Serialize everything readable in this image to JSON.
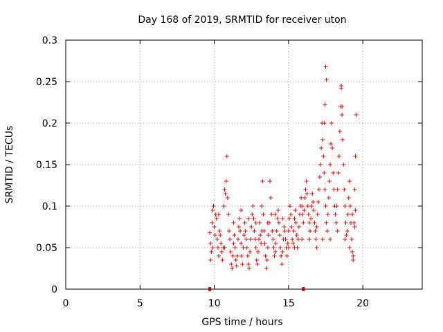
{
  "chart_data": {
    "type": "scatter",
    "title": "Day 168 of 2019, SRMTID for receiver uton",
    "xlabel": "GPS time / hours",
    "ylabel": "SRMTID / TECUs",
    "xlim": [
      0,
      24
    ],
    "ylim": [
      0,
      0.3
    ],
    "xticks": [
      0,
      5,
      10,
      15,
      20
    ],
    "yticks": [
      0,
      0.05,
      0.1,
      0.15,
      0.2,
      0.25,
      0.3
    ],
    "xtick_labels": [
      "0",
      "5",
      "10",
      "15",
      "20"
    ],
    "ytick_labels": [
      "0",
      "0.05",
      "0.1",
      "0.15",
      "0.2",
      "0.25",
      "0.3"
    ],
    "grid": true,
    "marker": "+",
    "color": "#ff0000",
    "axis_markers": {
      "x": [
        9.7,
        16.0
      ],
      "y": 0
    },
    "series": [
      {
        "name": "SRMTID",
        "points": [
          [
            9.7,
            0.068
          ],
          [
            9.75,
            0.055
          ],
          [
            9.8,
            0.045
          ],
          [
            9.85,
            0.08
          ],
          [
            9.9,
            0.095
          ],
          [
            9.95,
            0.1
          ],
          [
            10.0,
            0.075
          ],
          [
            10.05,
            0.065
          ],
          [
            10.1,
            0.09
          ],
          [
            10.15,
            0.085
          ],
          [
            10.2,
            0.06
          ],
          [
            10.25,
            0.05
          ],
          [
            10.3,
            0.04
          ],
          [
            10.35,
            0.07
          ],
          [
            10.4,
            0.065
          ],
          [
            10.45,
            0.055
          ],
          [
            10.5,
            0.045
          ],
          [
            10.55,
            0.035
          ],
          [
            10.6,
            0.05
          ],
          [
            10.65,
            0.1
          ],
          [
            10.7,
            0.12
          ],
          [
            10.75,
            0.115
          ],
          [
            10.8,
            0.13
          ],
          [
            10.85,
            0.16
          ],
          [
            10.9,
            0.11
          ],
          [
            10.95,
            0.09
          ],
          [
            11.0,
            0.07
          ],
          [
            11.05,
            0.06
          ],
          [
            11.1,
            0.045
          ],
          [
            11.15,
            0.03
          ],
          [
            11.2,
            0.025
          ],
          [
            11.25,
            0.04
          ],
          [
            11.3,
            0.055
          ],
          [
            11.35,
            0.065
          ],
          [
            11.4,
            0.05
          ],
          [
            11.45,
            0.035
          ],
          [
            11.5,
            0.028
          ],
          [
            11.55,
            0.04
          ],
          [
            11.6,
            0.06
          ],
          [
            11.65,
            0.075
          ],
          [
            11.7,
            0.085
          ],
          [
            11.75,
            0.07
          ],
          [
            11.8,
            0.055
          ],
          [
            11.85,
            0.04
          ],
          [
            11.9,
            0.03
          ],
          [
            11.95,
            0.05
          ],
          [
            12.0,
            0.065
          ],
          [
            12.05,
            0.08
          ],
          [
            12.1,
            0.07
          ],
          [
            12.15,
            0.06
          ],
          [
            12.2,
            0.05
          ],
          [
            12.25,
            0.04
          ],
          [
            12.3,
            0.03
          ],
          [
            12.35,
            0.025
          ],
          [
            12.4,
            0.045
          ],
          [
            12.45,
            0.06
          ],
          [
            12.5,
            0.075
          ],
          [
            12.55,
            0.09
          ],
          [
            12.6,
            0.1
          ],
          [
            12.65,
            0.085
          ],
          [
            12.7,
            0.07
          ],
          [
            12.75,
            0.06
          ],
          [
            12.8,
            0.05
          ],
          [
            12.85,
            0.035
          ],
          [
            12.9,
            0.03
          ],
          [
            12.95,
            0.045
          ],
          [
            13.0,
            0.06
          ],
          [
            13.05,
            0.08
          ],
          [
            13.1,
            0.065
          ],
          [
            13.15,
            0.055
          ],
          [
            13.2,
            0.1
          ],
          [
            13.25,
            0.13
          ],
          [
            13.3,
            0.09
          ],
          [
            13.35,
            0.07
          ],
          [
            13.4,
            0.055
          ],
          [
            13.45,
            0.04
          ],
          [
            13.5,
            0.025
          ],
          [
            13.55,
            0.035
          ],
          [
            13.6,
            0.05
          ],
          [
            13.65,
            0.065
          ],
          [
            13.7,
            0.08
          ],
          [
            13.75,
            0.13
          ],
          [
            13.8,
            0.11
          ],
          [
            13.85,
            0.09
          ],
          [
            13.9,
            0.07
          ],
          [
            13.95,
            0.06
          ],
          [
            14.0,
            0.05
          ],
          [
            14.05,
            0.04
          ],
          [
            14.1,
            0.045
          ],
          [
            14.15,
            0.055
          ],
          [
            14.2,
            0.07
          ],
          [
            14.25,
            0.085
          ],
          [
            14.3,
            0.095
          ],
          [
            14.35,
            0.08
          ],
          [
            14.4,
            0.065
          ],
          [
            14.45,
            0.05
          ],
          [
            14.5,
            0.04
          ],
          [
            14.55,
            0.03
          ],
          [
            14.6,
            0.045
          ],
          [
            14.65,
            0.06
          ],
          [
            14.7,
            0.075
          ],
          [
            14.75,
            0.07
          ],
          [
            14.8,
            0.06
          ],
          [
            14.85,
            0.05
          ],
          [
            14.9,
            0.04
          ],
          [
            14.95,
            0.055
          ],
          [
            15.0,
            0.07
          ],
          [
            15.05,
            0.085
          ],
          [
            15.1,
            0.1
          ],
          [
            15.15,
            0.09
          ],
          [
            15.2,
            0.075
          ],
          [
            15.25,
            0.06
          ],
          [
            15.3,
            0.055
          ],
          [
            15.35,
            0.07
          ],
          [
            15.4,
            0.085
          ],
          [
            15.45,
            0.095
          ],
          [
            15.5,
            0.08
          ],
          [
            15.55,
            0.065
          ],
          [
            15.6,
            0.05
          ],
          [
            15.65,
            0.06
          ],
          [
            15.7,
            0.075
          ],
          [
            15.75,
            0.09
          ],
          [
            15.8,
            0.1
          ],
          [
            15.85,
            0.11
          ],
          [
            15.9,
            0.1
          ],
          [
            15.95,
            0.09
          ],
          [
            16.0,
            0.08
          ],
          [
            16.05,
            0.095
          ],
          [
            16.1,
            0.11
          ],
          [
            16.15,
            0.12
          ],
          [
            16.2,
            0.13
          ],
          [
            16.25,
            0.115
          ],
          [
            16.3,
            0.1
          ],
          [
            16.35,
            0.09
          ],
          [
            16.4,
            0.08
          ],
          [
            16.45,
            0.07
          ],
          [
            16.5,
            0.085
          ],
          [
            16.55,
            0.1
          ],
          [
            16.6,
            0.115
          ],
          [
            16.65,
            0.105
          ],
          [
            16.7,
            0.095
          ],
          [
            16.75,
            0.08
          ],
          [
            16.8,
            0.07
          ],
          [
            16.85,
            0.06
          ],
          [
            16.9,
            0.075
          ],
          [
            16.95,
            0.09
          ],
          [
            17.0,
            0.105
          ],
          [
            17.05,
            0.12
          ],
          [
            17.1,
            0.135
          ],
          [
            17.15,
            0.15
          ],
          [
            17.2,
            0.17
          ],
          [
            17.25,
            0.2
          ],
          [
            17.3,
            0.18
          ],
          [
            17.35,
            0.16
          ],
          [
            17.4,
            0.14
          ],
          [
            17.45,
            0.12
          ],
          [
            17.5,
            0.1
          ],
          [
            17.55,
            0.08
          ],
          [
            17.6,
            0.07
          ],
          [
            17.65,
            0.09
          ],
          [
            17.7,
            0.11
          ],
          [
            17.75,
            0.13
          ],
          [
            17.8,
            0.15
          ],
          [
            17.85,
            0.175
          ],
          [
            17.9,
            0.2
          ],
          [
            17.95,
            0.17
          ],
          [
            18.0,
            0.14
          ],
          [
            18.05,
            0.12
          ],
          [
            18.1,
            0.1
          ],
          [
            18.15,
            0.09
          ],
          [
            18.2,
            0.08
          ],
          [
            18.25,
            0.1
          ],
          [
            18.3,
            0.12
          ],
          [
            18.35,
            0.14
          ],
          [
            18.4,
            0.16
          ],
          [
            18.45,
            0.19
          ],
          [
            18.5,
            0.22
          ],
          [
            18.55,
            0.245
          ],
          [
            18.6,
            0.21
          ],
          [
            18.65,
            0.18
          ],
          [
            18.7,
            0.15
          ],
          [
            18.75,
            0.12
          ],
          [
            18.8,
            0.1
          ],
          [
            18.85,
            0.08
          ],
          [
            18.9,
            0.065
          ],
          [
            18.95,
            0.07
          ],
          [
            19.0,
            0.09
          ],
          [
            19.05,
            0.11
          ],
          [
            19.1,
            0.13
          ],
          [
            19.15,
            0.1
          ],
          [
            19.2,
            0.08
          ],
          [
            19.25,
            0.06
          ],
          [
            19.3,
            0.045
          ],
          [
            19.35,
            0.035
          ],
          [
            19.4,
            0.08
          ],
          [
            19.45,
            0.12
          ],
          [
            19.5,
            0.16
          ],
          [
            19.55,
            0.21
          ],
          [
            17.5,
            0.268
          ],
          [
            17.55,
            0.252
          ],
          [
            17.45,
            0.222
          ],
          [
            18.55,
            0.242
          ],
          [
            18.6,
            0.22
          ],
          [
            17.4,
            0.2
          ],
          [
            9.9,
            0.05
          ],
          [
            10.3,
            0.09
          ],
          [
            10.7,
            0.05
          ],
          [
            11.3,
            0.08
          ],
          [
            11.8,
            0.095
          ],
          [
            12.3,
            0.085
          ],
          [
            12.8,
            0.08
          ],
          [
            13.2,
            0.07
          ],
          [
            13.6,
            0.08
          ],
          [
            14.1,
            0.09
          ],
          [
            14.6,
            0.085
          ],
          [
            15.0,
            0.05
          ],
          [
            15.4,
            0.05
          ],
          [
            15.9,
            0.06
          ],
          [
            16.4,
            0.06
          ],
          [
            16.9,
            0.05
          ],
          [
            17.3,
            0.06
          ],
          [
            17.8,
            0.06
          ],
          [
            18.3,
            0.07
          ],
          [
            18.8,
            0.06
          ],
          [
            19.1,
            0.05
          ],
          [
            19.3,
            0.09
          ],
          [
            19.45,
            0.075
          ],
          [
            19.5,
            0.095
          ],
          [
            9.75,
            0.035
          ],
          [
            19.35,
            0.04
          ]
        ]
      }
    ]
  }
}
